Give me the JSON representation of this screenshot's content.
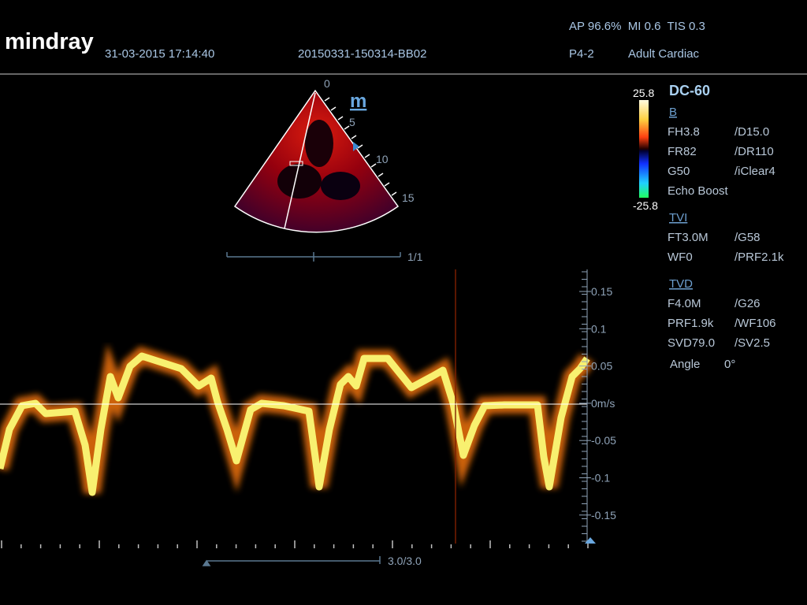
{
  "header": {
    "logo": "mindray",
    "datetime": "31-03-2015 17:14:40",
    "exam_id": "20150331-150314-BB02",
    "output_power": "AP 96.6%  MI 0.6  TIS 0.3",
    "probe": "P4-2",
    "preset": "Adult Cardiac"
  },
  "sector": {
    "mode_icon": "m",
    "depth_labels": [
      "0",
      "5",
      "10",
      "15"
    ],
    "cine_counter": "1/1"
  },
  "color_bar": {
    "max": "25.8",
    "min": "-25.8"
  },
  "parameters": {
    "title": "DC-60",
    "sections": [
      {
        "heading": "B",
        "rows": [
          [
            "FH3.8",
            "/D15.0"
          ],
          [
            "FR82",
            "/DR110"
          ],
          [
            "G50",
            "/iClear4"
          ],
          [
            "Echo Boost"
          ]
        ]
      },
      {
        "heading": "TVI",
        "rows": [
          [
            "FT3.0M",
            "/G58"
          ],
          [
            "WF0",
            "/PRF2.1k"
          ]
        ]
      },
      {
        "heading": "TVD",
        "rows": [
          [
            "F4.0M",
            "/G26"
          ],
          [
            "PRF1.9k",
            "/WF106"
          ],
          [
            "SVD79.0",
            "/SV2.5"
          ],
          [
            "Angle",
            "0°"
          ]
        ]
      }
    ]
  },
  "velocity_scale": {
    "labels": [
      "0.15",
      "0.1",
      "0.05",
      "0m/s",
      "-0.05",
      "-0.1",
      "-0.15"
    ]
  },
  "sweep": {
    "counter": "3.0/3.0"
  }
}
